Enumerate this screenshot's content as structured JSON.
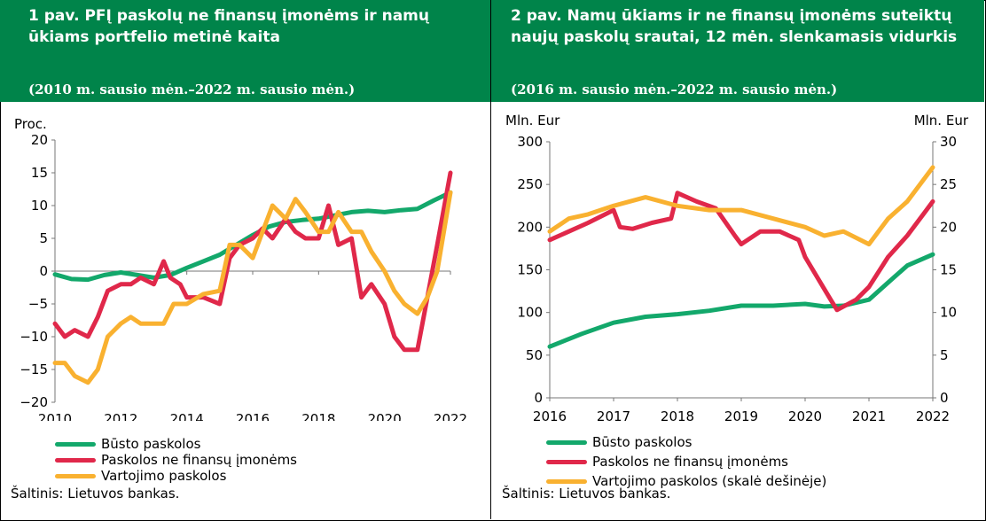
{
  "colors": {
    "header_bg": "#00844a",
    "green": "#13a86b",
    "red": "#e0284a",
    "orange": "#f9b130"
  },
  "chart_data": [
    {
      "type": "line",
      "title": "1 pav. PFĮ paskolų ne finansų įmonėms ir namų ūkiams portfelio metinė kaita",
      "subtitle": "(2010 m. sausio mėn.–2022 m. sausio mėn.)",
      "ylabel": "Proc.",
      "xlim": [
        2010,
        2022
      ],
      "ylim": [
        -20,
        20
      ],
      "xticks": [
        "2010",
        "2012",
        "2014",
        "2016",
        "2018",
        "2020",
        "2022"
      ],
      "yticks": [
        "20",
        "15",
        "10",
        "5",
        "0",
        "−5",
        "−10",
        "−15",
        "−20"
      ],
      "source": "Šaltinis: Lietuvos bankas.",
      "series": [
        {
          "name": "Būsto paskolos",
          "color": "#13a86b",
          "x": [
            2010,
            2010.5,
            2011,
            2011.5,
            2012,
            2012.5,
            2013,
            2013.5,
            2014,
            2014.5,
            2015,
            2015.5,
            2016,
            2016.5,
            2017,
            2017.5,
            2018,
            2018.5,
            2019,
            2019.5,
            2020,
            2020.5,
            2021,
            2021.5,
            2022
          ],
          "y": [
            -0.5,
            -1.2,
            -1.3,
            -0.6,
            -0.2,
            -0.6,
            -1.0,
            -0.6,
            0.5,
            1.5,
            2.5,
            4.0,
            5.5,
            6.8,
            7.5,
            7.8,
            8.0,
            8.5,
            9.0,
            9.2,
            9.0,
            9.3,
            9.5,
            10.8,
            12.0
          ]
        },
        {
          "name": "Paskolos ne finansų įmonėms",
          "color": "#e0284a",
          "x": [
            2010,
            2010.3,
            2010.6,
            2011,
            2011.3,
            2011.6,
            2012,
            2012.3,
            2012.6,
            2013,
            2013.3,
            2013.5,
            2013.8,
            2014,
            2014.5,
            2015,
            2015.3,
            2015.6,
            2016,
            2016.3,
            2016.6,
            2017,
            2017.3,
            2017.6,
            2018,
            2018.3,
            2018.6,
            2019,
            2019.3,
            2019.6,
            2020,
            2020.3,
            2020.6,
            2021,
            2021.3,
            2021.6,
            2022
          ],
          "y": [
            -8,
            -10,
            -9,
            -10,
            -7,
            -3,
            -2,
            -2,
            -1,
            -2,
            1.5,
            -1,
            -2,
            -4,
            -4,
            -5,
            2,
            4,
            5,
            6.5,
            5,
            8,
            6,
            5,
            5,
            10,
            4,
            5,
            -4,
            -2,
            -5,
            -10,
            -12,
            -12,
            -4,
            4,
            15
          ]
        },
        {
          "name": "Vartojimo paskolos",
          "color": "#f9b130",
          "x": [
            2010,
            2010.3,
            2010.6,
            2011,
            2011.3,
            2011.6,
            2012,
            2012.3,
            2012.6,
            2013,
            2013.3,
            2013.6,
            2014,
            2014.5,
            2015,
            2015.3,
            2015.6,
            2016,
            2016.3,
            2016.6,
            2017,
            2017.3,
            2017.6,
            2018,
            2018.3,
            2018.6,
            2019,
            2019.3,
            2019.6,
            2020,
            2020.3,
            2020.6,
            2021,
            2021.3,
            2021.6,
            2022
          ],
          "y": [
            -14,
            -14,
            -16,
            -17,
            -15,
            -10,
            -8,
            -7,
            -8,
            -8,
            -8,
            -5,
            -5,
            -3.5,
            -3,
            4,
            4,
            2,
            6,
            10,
            8,
            11,
            9,
            6,
            6,
            9,
            6,
            6,
            3,
            0,
            -3,
            -5,
            -6.5,
            -4,
            0,
            12
          ]
        }
      ]
    },
    {
      "type": "line",
      "title": "2 pav. Namų ūkiams ir ne finansų įmonėms suteiktų naujų paskolų srautai, 12 mėn. slenkamasis vidurkis",
      "subtitle": "(2016 m. sausio mėn.–2022 m. sausio mėn.)",
      "ylabel": "Mln. Eur",
      "ylabel_right": "Mln. Eur",
      "xlim": [
        2016,
        2022
      ],
      "ylim": [
        0,
        300
      ],
      "ylim_right": [
        0,
        30
      ],
      "xticks": [
        "2016",
        "2017",
        "2018",
        "2019",
        "2020",
        "2021",
        "2022"
      ],
      "yticks": [
        "300",
        "250",
        "200",
        "150",
        "100",
        "50",
        "0"
      ],
      "yticks_right": [
        "30",
        "25",
        "20",
        "15",
        "10",
        "5",
        "0"
      ],
      "source": "Šaltinis: Lietuvos bankas.",
      "series": [
        {
          "name": "Būsto paskolos",
          "color": "#13a86b",
          "axis": "left",
          "x": [
            2016,
            2016.5,
            2017,
            2017.5,
            2018,
            2018.5,
            2019,
            2019.5,
            2020,
            2020.3,
            2020.6,
            2021,
            2021.3,
            2021.6,
            2022
          ],
          "y": [
            60,
            75,
            88,
            95,
            98,
            102,
            108,
            108,
            110,
            107,
            108,
            115,
            135,
            155,
            168
          ]
        },
        {
          "name": "Paskolos ne finansų įmonėms",
          "color": "#e0284a",
          "axis": "left",
          "x": [
            2016,
            2016.3,
            2016.6,
            2017,
            2017.1,
            2017.3,
            2017.6,
            2017.9,
            2018,
            2018.3,
            2018.6,
            2018.9,
            2019,
            2019.3,
            2019.6,
            2019.9,
            2020,
            2020.2,
            2020.4,
            2020.5,
            2020.8,
            2021,
            2021.3,
            2021.6,
            2021.9,
            2022
          ],
          "y": [
            185,
            195,
            205,
            220,
            200,
            198,
            205,
            210,
            240,
            230,
            222,
            190,
            180,
            195,
            195,
            185,
            165,
            140,
            115,
            103,
            115,
            130,
            165,
            190,
            220,
            230
          ]
        },
        {
          "name": "Vartojimo paskolos (skalė dešinėje)",
          "color": "#f9b130",
          "axis": "right",
          "x": [
            2016,
            2016.3,
            2016.6,
            2017,
            2017.5,
            2018,
            2018.5,
            2019,
            2019.5,
            2020,
            2020.3,
            2020.6,
            2021,
            2021.3,
            2021.6,
            2022
          ],
          "y": [
            19.5,
            21,
            21.5,
            22.5,
            23.5,
            22.5,
            22,
            22,
            21,
            20,
            19,
            19.5,
            18,
            21,
            23,
            27
          ]
        }
      ]
    }
  ]
}
